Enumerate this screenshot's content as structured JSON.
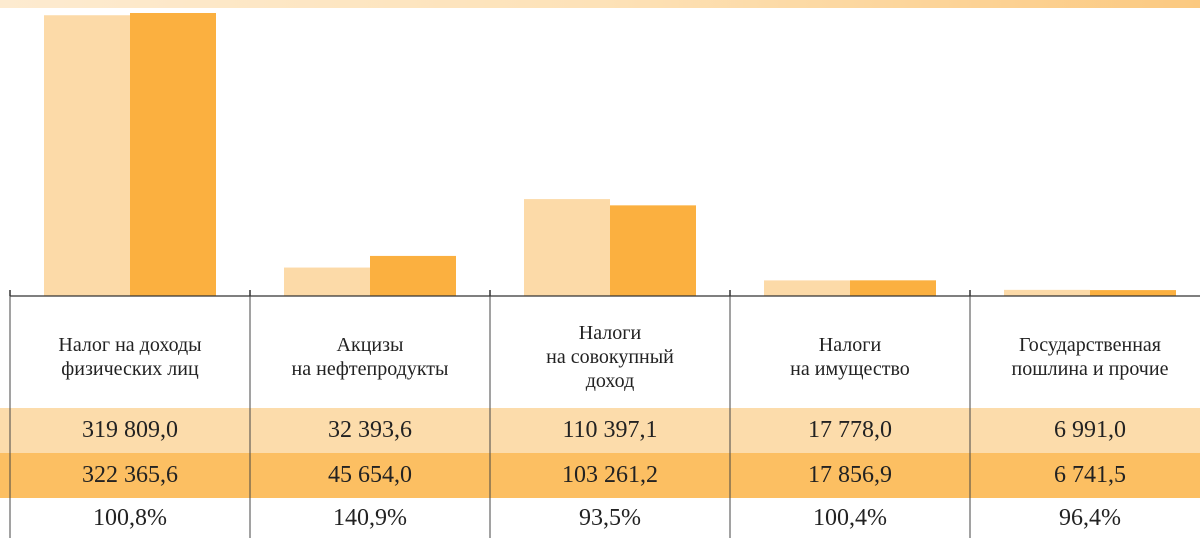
{
  "chart_data": {
    "type": "bar",
    "categories": [
      "Налог на доходы\nфизических лиц",
      "Акцизы\nна нефтепродукты",
      "Налоги\nна совокупный\nдоход",
      "Налоги\nна имущество",
      "Государственная\nпошлина и прочие"
    ],
    "series": [
      {
        "color": "#fcdaa8",
        "row_color": "#fcdcab",
        "values": [
          319809.0,
          32393.6,
          110397.1,
          17778.0,
          6991.0
        ],
        "value_labels": [
          "319 809,0",
          "32 393,6",
          "110 397,1",
          "17 778,0",
          "6 991,0"
        ]
      },
      {
        "color": "#fbb040",
        "row_color": "#fcbf62",
        "values": [
          322365.6,
          45654.0,
          103261.2,
          17856.9,
          6741.5
        ],
        "value_labels": [
          "322 365,6",
          "45 654,0",
          "103 261,2",
          "17 856,9",
          "6 741,5"
        ]
      }
    ],
    "ratio": {
      "values": [
        100.8,
        140.9,
        93.5,
        100.4,
        96.4
      ],
      "value_labels": [
        "100,8%",
        "140,9%",
        "93,5%",
        "100,4%",
        "96,4%"
      ]
    }
  }
}
